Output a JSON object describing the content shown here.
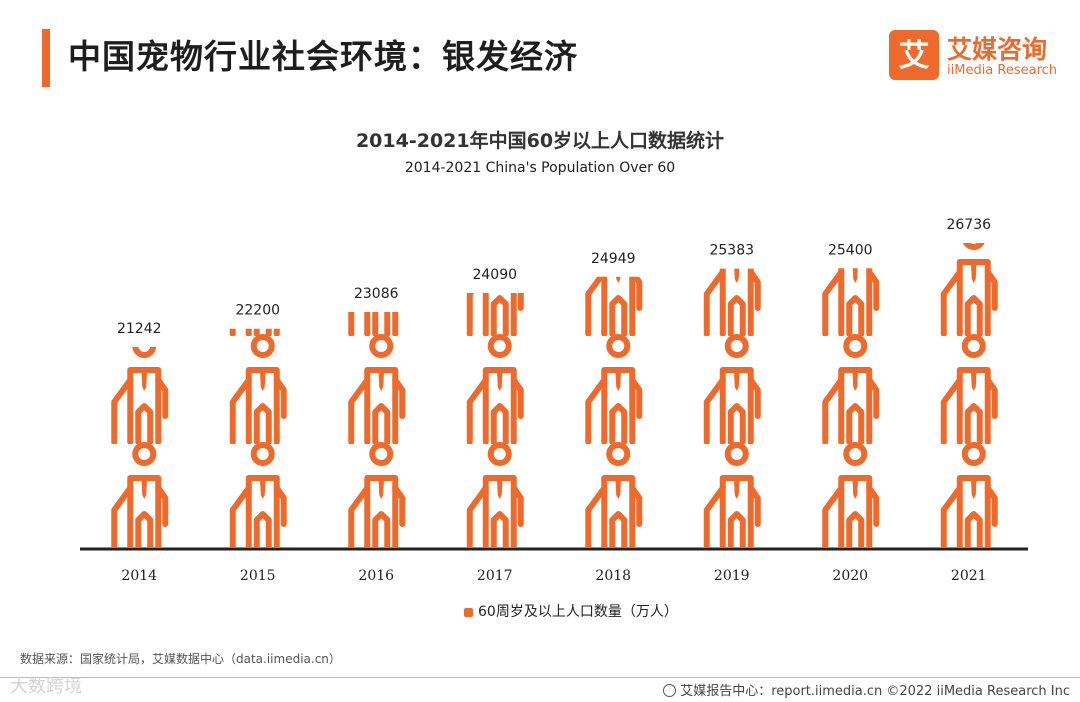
{
  "header": {
    "title": "中国宠物行业社会环境：银发经济"
  },
  "logo": {
    "cn": "艾媒咨询",
    "en": "iiMedia Research",
    "mark": "艾"
  },
  "colors": {
    "accent": "#ee6a2c",
    "axis": "#222222"
  },
  "chart_data": {
    "type": "bar",
    "title": "2014-2021年中国60岁以上人口数据统计",
    "subtitle": "2014-2021 China's Population Over 60",
    "categories": [
      "2014",
      "2015",
      "2016",
      "2017",
      "2018",
      "2019",
      "2020",
      "2021"
    ],
    "values": [
      21242,
      22200,
      23086,
      24090,
      24949,
      25383,
      25400,
      26736
    ],
    "series": [
      {
        "name": "60周岁及以上人口数量（万人）",
        "values": [
          21242,
          22200,
          23086,
          24090,
          24949,
          25383,
          25400,
          26736
        ]
      }
    ],
    "ylim": [
      0,
      29500
    ],
    "marker": "elderly-person-pictogram",
    "legend": "bottom-center"
  },
  "source": "数据来源：国家统计局，艾媒数据中心（data.iimedia.cn）",
  "footer": {
    "text": "艾媒报告中心：report.iimedia.cn   ©2022  iiMedia Research  Inc"
  },
  "watermark": "大数跨境"
}
